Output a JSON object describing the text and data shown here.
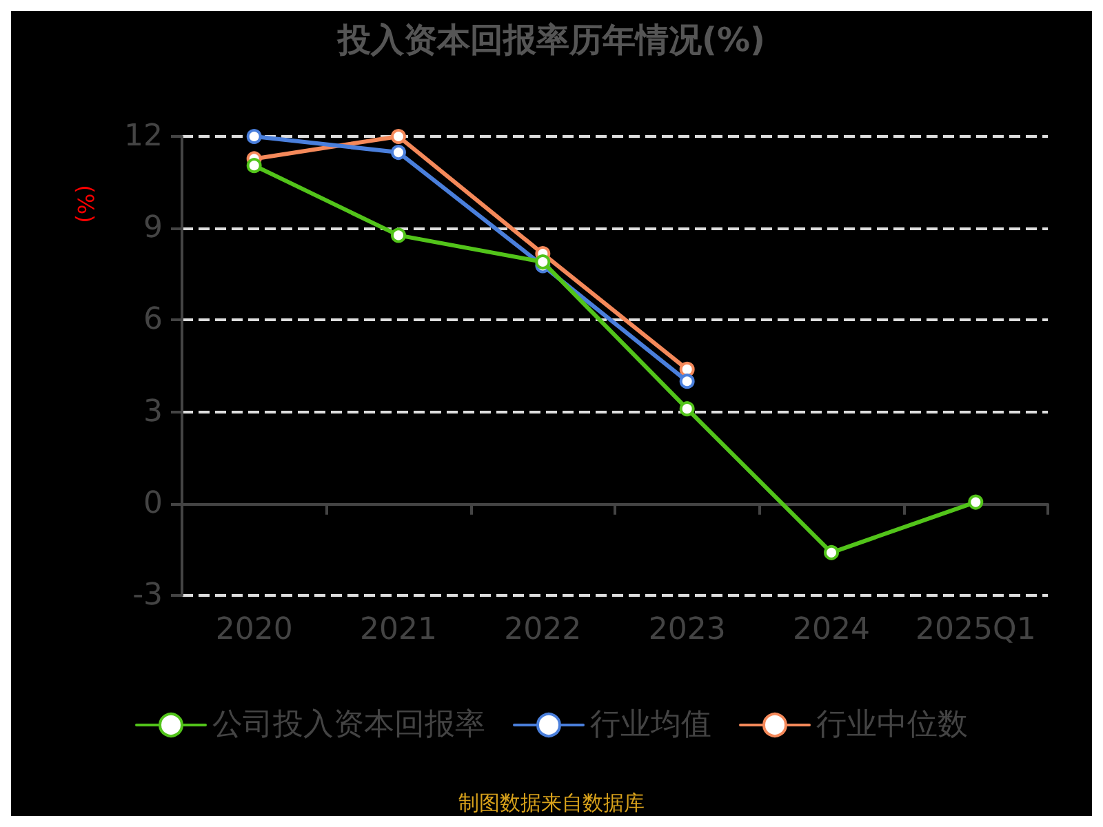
{
  "chart_data": {
    "type": "line",
    "title": "投入资本回报率历年情况(%)",
    "ylabel": "(%)",
    "categories": [
      "2020",
      "2021",
      "2022",
      "2023",
      "2024",
      "2025Q1"
    ],
    "series": [
      {
        "name": "公司投入资本回报率",
        "color": "#52c41a",
        "values": [
          11.05,
          8.77,
          7.9,
          3.1,
          -1.6,
          0.05
        ]
      },
      {
        "name": "行业均值",
        "color": "#4a7fdc",
        "values": [
          12.0,
          11.48,
          7.78,
          4.0,
          null,
          null
        ]
      },
      {
        "name": "行业中位数",
        "color": "#f5895a",
        "values": [
          11.27,
          12.0,
          8.17,
          4.39,
          null,
          null
        ]
      }
    ],
    "ylim": [
      -3,
      12
    ],
    "yticks": [
      -3,
      0,
      3,
      6,
      9,
      12
    ],
    "grid": "y",
    "legend": "bottom",
    "marker": "circle",
    "line_style": "solid",
    "annotations": [
      "制图数据来自数据库"
    ]
  }
}
